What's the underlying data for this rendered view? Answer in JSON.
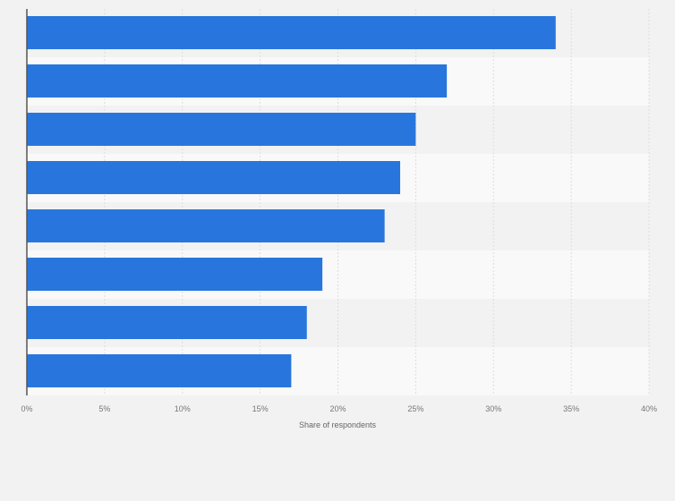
{
  "chart_data": {
    "type": "bar",
    "orientation": "horizontal",
    "title": "",
    "xlabel": "Share of respondents",
    "ylabel": "",
    "categories": [
      "",
      "",
      "",
      "",
      "",
      "",
      "",
      ""
    ],
    "values": [
      34,
      27,
      25,
      24,
      23,
      19,
      18,
      17
    ],
    "unit": "%",
    "xlim": [
      0,
      40
    ],
    "xticks": [
      0,
      5,
      10,
      15,
      20,
      25,
      30,
      35,
      40
    ],
    "xtick_labels": [
      "0%",
      "5%",
      "10%",
      "15%",
      "20%",
      "25%",
      "30%",
      "35%",
      "40%"
    ],
    "grid": true,
    "legend": "none",
    "colors": {
      "bar": "#2876dd",
      "background": "#f2f2f2",
      "band_alt": "#f9f9f9",
      "grid": "#dddddd",
      "axis": "#555555"
    }
  }
}
